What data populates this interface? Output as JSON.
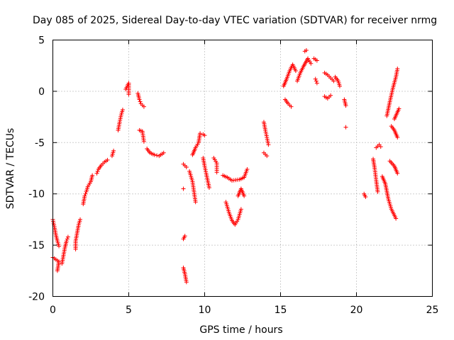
{
  "chart_data": {
    "type": "scatter",
    "title": "Day 085 of 2025, Sidereal Day-to-day VTEC variation (SDTVAR) for receiver nrmg",
    "xlabel": "GPS time / hours",
    "ylabel": "SDTVAR / TECUs",
    "xlim": [
      0,
      25
    ],
    "ylim": [
      -20,
      5
    ],
    "xticks": [
      "0",
      "5",
      "10",
      "15",
      "20",
      "25"
    ],
    "yticks": [
      "5",
      "0",
      "-5",
      "-10",
      "-15",
      "-20"
    ],
    "grid": true,
    "marker": "plus",
    "color": "#ff0000",
    "series": [
      {
        "name": "SDTVAR",
        "segments": [
          [
            [
              0.0,
              -12.5
            ],
            [
              0.1,
              -13.2
            ],
            [
              0.2,
              -14.0
            ],
            [
              0.3,
              -14.6
            ],
            [
              0.4,
              -15.1
            ]
          ],
          [
            [
              0.0,
              -16.2
            ],
            [
              0.2,
              -16.4
            ],
            [
              0.4,
              -16.6
            ],
            [
              0.3,
              -17.5
            ]
          ],
          [
            [
              0.6,
              -16.8
            ],
            [
              0.7,
              -16.0
            ],
            [
              0.8,
              -15.2
            ],
            [
              0.9,
              -14.6
            ],
            [
              1.0,
              -14.2
            ]
          ],
          [
            [
              1.5,
              -15.4
            ],
            [
              1.5,
              -14.6
            ],
            [
              1.6,
              -13.8
            ],
            [
              1.7,
              -13.0
            ],
            [
              1.8,
              -12.5
            ]
          ],
          [
            [
              2.0,
              -11.0
            ],
            [
              2.1,
              -10.2
            ],
            [
              2.2,
              -9.8
            ],
            [
              2.3,
              -9.3
            ],
            [
              2.5,
              -8.8
            ],
            [
              2.6,
              -8.2
            ]
          ],
          [
            [
              2.9,
              -8.0
            ],
            [
              3.0,
              -7.6
            ],
            [
              3.2,
              -7.2
            ],
            [
              3.4,
              -6.9
            ],
            [
              3.6,
              -6.7
            ]
          ],
          [
            [
              3.9,
              -6.3
            ],
            [
              4.0,
              -5.8
            ]
          ],
          [
            [
              4.3,
              -3.8
            ],
            [
              4.4,
              -3.0
            ],
            [
              4.5,
              -2.3
            ],
            [
              4.6,
              -1.8
            ]
          ],
          [
            [
              4.8,
              0.2
            ],
            [
              5.0,
              0.8
            ],
            [
              5.0,
              -0.3
            ]
          ],
          [
            [
              5.6,
              -0.2
            ],
            [
              5.7,
              -0.8
            ],
            [
              5.8,
              -1.2
            ],
            [
              6.0,
              -1.5
            ]
          ],
          [
            [
              5.7,
              -3.8
            ],
            [
              5.9,
              -3.9
            ],
            [
              6.0,
              -4.9
            ]
          ],
          [
            [
              6.2,
              -5.6
            ],
            [
              6.4,
              -6.0
            ],
            [
              6.7,
              -6.2
            ],
            [
              7.0,
              -6.3
            ],
            [
              7.3,
              -6.0
            ]
          ],
          [
            [
              8.6,
              -7.1
            ],
            [
              8.8,
              -7.4
            ]
          ],
          [
            [
              8.6,
              -9.5
            ]
          ],
          [
            [
              8.6,
              -14.4
            ],
            [
              8.7,
              -14.1
            ]
          ],
          [
            [
              8.6,
              -17.2
            ],
            [
              8.7,
              -17.8
            ],
            [
              8.8,
              -18.6
            ]
          ],
          [
            [
              9.0,
              -7.8
            ],
            [
              9.2,
              -8.8
            ],
            [
              9.3,
              -9.8
            ],
            [
              9.4,
              -10.8
            ]
          ],
          [
            [
              9.2,
              -6.2
            ],
            [
              9.4,
              -5.5
            ],
            [
              9.6,
              -5.0
            ],
            [
              9.7,
              -4.1
            ]
          ],
          [
            [
              9.9,
              -4.2
            ],
            [
              10.0,
              -4.3
            ]
          ],
          [
            [
              9.9,
              -6.5
            ],
            [
              10.0,
              -7.3
            ],
            [
              10.1,
              -8.0
            ],
            [
              10.3,
              -9.4
            ]
          ],
          [
            [
              10.6,
              -6.5
            ],
            [
              10.8,
              -7.0
            ],
            [
              10.8,
              -7.9
            ]
          ],
          [
            [
              11.2,
              -8.2
            ],
            [
              11.5,
              -8.4
            ],
            [
              11.8,
              -8.7
            ],
            [
              12.3,
              -8.6
            ],
            [
              12.6,
              -8.4
            ],
            [
              12.8,
              -7.6
            ]
          ],
          [
            [
              11.4,
              -10.8
            ],
            [
              11.6,
              -11.8
            ],
            [
              11.8,
              -12.6
            ],
            [
              12.0,
              -13.0
            ],
            [
              12.2,
              -12.5
            ],
            [
              12.4,
              -11.5
            ]
          ],
          [
            [
              12.2,
              -10.2
            ],
            [
              12.4,
              -9.5
            ],
            [
              12.6,
              -10.2
            ]
          ],
          [
            [
              13.9,
              -3.0
            ],
            [
              14.0,
              -3.8
            ],
            [
              14.1,
              -4.5
            ],
            [
              14.2,
              -5.2
            ]
          ],
          [
            [
              13.9,
              -6.0
            ],
            [
              14.1,
              -6.3
            ]
          ],
          [
            [
              15.2,
              0.5
            ],
            [
              15.4,
              1.2
            ],
            [
              15.6,
              2.0
            ],
            [
              15.8,
              2.6
            ],
            [
              16.0,
              2.0
            ]
          ],
          [
            [
              15.3,
              -0.8
            ],
            [
              15.5,
              -1.2
            ],
            [
              15.7,
              -1.5
            ]
          ],
          [
            [
              16.1,
              1.0
            ],
            [
              16.3,
              1.8
            ],
            [
              16.5,
              2.4
            ],
            [
              16.8,
              3.2
            ],
            [
              17.0,
              2.7
            ]
          ],
          [
            [
              16.6,
              3.9
            ],
            [
              16.7,
              4.0
            ]
          ],
          [
            [
              17.2,
              3.2
            ],
            [
              17.4,
              3.0
            ]
          ],
          [
            [
              17.3,
              1.2
            ],
            [
              17.4,
              0.8
            ]
          ],
          [
            [
              17.9,
              1.8
            ],
            [
              18.1,
              1.6
            ],
            [
              18.3,
              1.3
            ],
            [
              18.5,
              1.0
            ]
          ],
          [
            [
              17.9,
              -0.5
            ],
            [
              18.1,
              -0.7
            ],
            [
              18.3,
              -0.4
            ]
          ],
          [
            [
              18.6,
              1.4
            ],
            [
              18.8,
              1.0
            ],
            [
              18.9,
              0.5
            ]
          ],
          [
            [
              19.2,
              -0.8
            ],
            [
              19.3,
              -1.4
            ]
          ],
          [
            [
              19.3,
              -3.5
            ]
          ],
          [
            [
              20.5,
              -10.0
            ],
            [
              20.6,
              -10.3
            ]
          ],
          [
            [
              21.1,
              -6.6
            ],
            [
              21.2,
              -7.5
            ],
            [
              21.3,
              -8.7
            ],
            [
              21.4,
              -9.8
            ]
          ],
          [
            [
              21.3,
              -5.5
            ],
            [
              21.5,
              -5.2
            ],
            [
              21.6,
              -5.4
            ]
          ],
          [
            [
              21.7,
              -8.3
            ],
            [
              21.9,
              -9.0
            ],
            [
              22.1,
              -10.5
            ],
            [
              22.3,
              -11.5
            ],
            [
              22.6,
              -12.4
            ]
          ],
          [
            [
              22.0,
              -2.4
            ],
            [
              22.2,
              -1.0
            ],
            [
              22.4,
              0.3
            ],
            [
              22.6,
              1.4
            ],
            [
              22.7,
              2.2
            ]
          ],
          [
            [
              22.3,
              -3.4
            ],
            [
              22.5,
              -3.8
            ],
            [
              22.7,
              -4.5
            ]
          ],
          [
            [
              22.2,
              -6.8
            ],
            [
              22.5,
              -7.3
            ],
            [
              22.7,
              -8.0
            ]
          ],
          [
            [
              22.5,
              -2.7
            ],
            [
              22.8,
              -1.7
            ]
          ]
        ]
      }
    ]
  }
}
